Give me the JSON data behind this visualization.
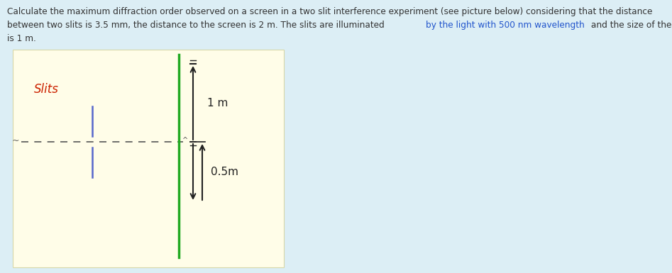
{
  "background_color": "#dceef5",
  "box_color": "#fffde8",
  "box_edge_color": "#d8d8a8",
  "text_color_normal": "#333333",
  "text_color_highlight_blue": "#2255cc",
  "text_color_red": "#cc2200",
  "slits_label": "Slits",
  "label_05": "0.5m",
  "label_1m": "1 m",
  "slit_color": "#5566cc",
  "screen_color": "#22aa22",
  "arrow_color": "#222222",
  "dashed_color": "#555555",
  "line1": "Calculate the maximum diffraction order observed on a screen in a two slit interference experiment (see picture below) considering that the distance",
  "line2a": "between two slits is 3.5 mm, the distance to the screen is 2 m. The slits are illuminated ",
  "line2b": "by the light with 500 nm wavelength",
  "line2c": " and the size of the screen",
  "line3": "is 1 m."
}
